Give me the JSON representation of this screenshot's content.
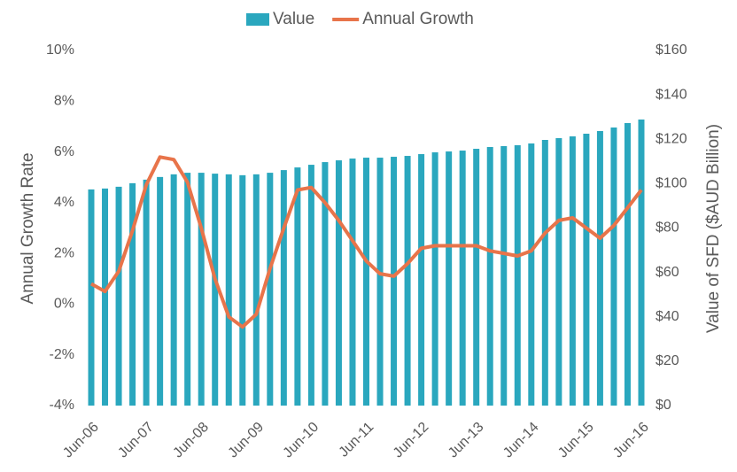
{
  "chart_data": {
    "type": "combo",
    "categories": [
      "Jun-06",
      null,
      null,
      null,
      "Jun-07",
      null,
      null,
      null,
      "Jun-08",
      null,
      null,
      null,
      "Jun-09",
      null,
      null,
      null,
      "Jun-10",
      null,
      null,
      null,
      "Jun-11",
      null,
      null,
      null,
      "Jun-12",
      null,
      null,
      null,
      "Jun-13",
      null,
      null,
      null,
      "Jun-14",
      null,
      null,
      null,
      "Jun-15",
      null,
      null,
      null,
      "Jun-16"
    ],
    "series": [
      {
        "name": "Value",
        "type": "bar",
        "axis": "y2",
        "color": "#2aa7be",
        "values": [
          97.4,
          97.8,
          98.6,
          100.2,
          101.8,
          103.0,
          104.2,
          104.9,
          104.9,
          104.5,
          104.2,
          103.8,
          104.2,
          104.9,
          106.1,
          107.3,
          108.5,
          109.7,
          110.5,
          111.3,
          111.7,
          111.7,
          112.1,
          112.5,
          113.3,
          114.1,
          114.5,
          114.9,
          115.7,
          116.5,
          116.9,
          117.3,
          118.1,
          119.7,
          120.5,
          121.3,
          122.5,
          123.7,
          125.3,
          127.3,
          128.9
        ]
      },
      {
        "name": "Annual Growth",
        "type": "line",
        "axis": "y",
        "color": "#e8744a",
        "values": [
          0.8,
          0.5,
          1.3,
          2.9,
          4.7,
          5.8,
          5.7,
          4.8,
          3.0,
          1.0,
          -0.5,
          -0.9,
          -0.4,
          1.4,
          3.0,
          4.5,
          4.6,
          4.0,
          3.3,
          2.5,
          1.7,
          1.2,
          1.1,
          1.6,
          2.2,
          2.3,
          2.3,
          2.3,
          2.3,
          2.1,
          2.0,
          1.9,
          2.1,
          2.8,
          3.3,
          3.4,
          3.0,
          2.6,
          3.1,
          3.8,
          4.5
        ]
      }
    ],
    "ylabel": "Annual Growth Rate",
    "y2label": "Value of SFD ($AUD Billion)",
    "ylim": [
      -4,
      10
    ],
    "yticks": [
      {
        "value": -4,
        "label": "-4%"
      },
      {
        "value": -2,
        "label": "-2%"
      },
      {
        "value": 0,
        "label": "0%"
      },
      {
        "value": 2,
        "label": "2%"
      },
      {
        "value": 4,
        "label": "4%"
      },
      {
        "value": 6,
        "label": "6%"
      },
      {
        "value": 8,
        "label": "8%"
      },
      {
        "value": 10,
        "label": "10%"
      }
    ],
    "y2lim": [
      0,
      160
    ],
    "y2ticks": [
      {
        "value": 0,
        "label": "$0"
      },
      {
        "value": 20,
        "label": "$20"
      },
      {
        "value": 40,
        "label": "$40"
      },
      {
        "value": 60,
        "label": "$60"
      },
      {
        "value": 80,
        "label": "$80"
      },
      {
        "value": 100,
        "label": "$100"
      },
      {
        "value": 120,
        "label": "$120"
      },
      {
        "value": 140,
        "label": "$140"
      },
      {
        "value": 160,
        "label": "$160"
      }
    ],
    "legend": "top",
    "grid": false
  }
}
